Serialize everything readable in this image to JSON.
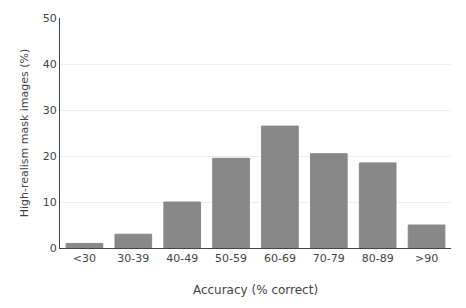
{
  "chart_data": {
    "type": "bar",
    "xlabel": "Accuracy (% correct)",
    "ylabel": "High-realism mask images (%)",
    "categories": [
      "<30",
      "30-39",
      "40-49",
      "50-59",
      "60-69",
      "70-79",
      "80-89",
      ">90"
    ],
    "values": [
      1,
      3,
      10,
      19.5,
      26.5,
      20.5,
      18.5,
      5
    ],
    "color": "#888888",
    "ylim": [
      0,
      50
    ],
    "yticks": [
      0,
      10,
      20,
      30,
      40,
      50
    ],
    "grid": true
  }
}
